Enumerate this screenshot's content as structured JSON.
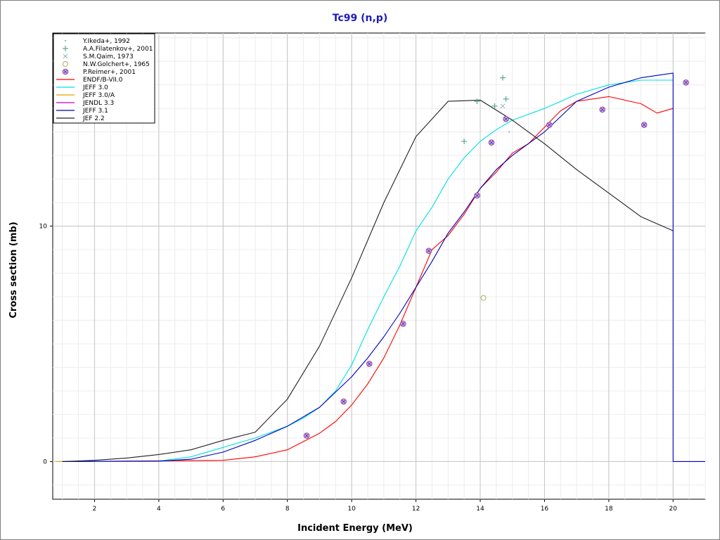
{
  "chart_data": {
    "type": "line",
    "title": "Tc99 (n,p)",
    "xlabel": "Incident Energy (MeV)",
    "ylabel": "Cross section (mb)",
    "xlim": [
      0.7,
      21
    ],
    "ylim": [
      -1.6,
      18.2
    ],
    "x_ticks": [
      2,
      4,
      6,
      8,
      10,
      12,
      14,
      16,
      18,
      20
    ],
    "y_ticks": [
      0,
      10
    ],
    "grid": true,
    "legend_position": "top-left",
    "series": [
      {
        "name": "Y.Ikeda+, 1992",
        "kind": "scatter",
        "marker": "dot",
        "color": "#6aa6a6",
        "points": [
          [
            14.9,
            14.0
          ]
        ]
      },
      {
        "name": "A.A.Filatenkov+, 2001",
        "kind": "scatter",
        "marker": "plus",
        "color": "#5aa88a",
        "points": [
          [
            13.5,
            13.6
          ],
          [
            13.9,
            15.3
          ],
          [
            14.45,
            15.1
          ],
          [
            14.7,
            16.3
          ],
          [
            14.8,
            15.4
          ]
        ]
      },
      {
        "name": "S.M.Qaim, 1973",
        "kind": "scatter",
        "marker": "cross",
        "color": "#8ab0c0",
        "points": [
          [
            14.7,
            15.1
          ]
        ]
      },
      {
        "name": "N.W.Golchert+, 1965",
        "kind": "scatter",
        "marker": "circle",
        "color": "#b0b060",
        "points": [
          [
            14.1,
            6.95
          ]
        ]
      },
      {
        "name": "P.Reimer+, 2001",
        "kind": "scatter",
        "marker": "circle-x",
        "color": "#a040a0",
        "points": [
          [
            8.6,
            1.1
          ],
          [
            9.75,
            2.55
          ],
          [
            10.55,
            4.15
          ],
          [
            11.6,
            5.85
          ],
          [
            12.4,
            8.95
          ],
          [
            13.9,
            11.3
          ],
          [
            14.35,
            13.55
          ],
          [
            14.8,
            14.55
          ],
          [
            16.15,
            14.3
          ],
          [
            17.8,
            14.95
          ],
          [
            19.1,
            14.3
          ],
          [
            20.4,
            16.1
          ]
        ]
      },
      {
        "name": "ENDF/B-VII.0",
        "kind": "line",
        "color": "#ff0000",
        "points": [
          [
            1,
            0
          ],
          [
            6,
            0.05
          ],
          [
            7,
            0.2
          ],
          [
            8,
            0.5
          ],
          [
            9,
            1.2
          ],
          [
            9.5,
            1.7
          ],
          [
            10,
            2.4
          ],
          [
            10.5,
            3.3
          ],
          [
            11,
            4.4
          ],
          [
            11.5,
            5.8
          ],
          [
            12,
            7.4
          ],
          [
            12.5,
            9.0
          ],
          [
            13,
            9.6
          ],
          [
            13.5,
            10.5
          ],
          [
            14,
            11.6
          ],
          [
            14.5,
            12.3
          ],
          [
            15,
            13.1
          ],
          [
            15.5,
            13.5
          ],
          [
            16,
            14.2
          ],
          [
            16.5,
            14.9
          ],
          [
            17,
            15.3
          ],
          [
            18,
            15.5
          ],
          [
            19,
            15.2
          ],
          [
            19.5,
            14.8
          ],
          [
            20,
            15.0
          ]
        ]
      },
      {
        "name": "JEFF 3.0",
        "kind": "line",
        "color": "#00e0e0",
        "points": [
          [
            1,
            0
          ],
          [
            4,
            0.02
          ],
          [
            5,
            0.2
          ],
          [
            6,
            0.6
          ],
          [
            7,
            1.0
          ],
          [
            8,
            1.5
          ],
          [
            8.5,
            1.85
          ],
          [
            9,
            2.3
          ],
          [
            9.5,
            3.0
          ],
          [
            10,
            4.1
          ],
          [
            10.5,
            5.6
          ],
          [
            11,
            7.0
          ],
          [
            11.5,
            8.3
          ],
          [
            12,
            9.8
          ],
          [
            12.5,
            10.8
          ],
          [
            13,
            12.0
          ],
          [
            13.5,
            12.9
          ],
          [
            14,
            13.6
          ],
          [
            14.5,
            14.1
          ],
          [
            15,
            14.5
          ],
          [
            16,
            15.0
          ],
          [
            17,
            15.6
          ],
          [
            18,
            16.0
          ],
          [
            19,
            16.2
          ],
          [
            20,
            16.2
          ]
        ]
      },
      {
        "name": "JEFF 3.0/A",
        "kind": "line",
        "color": "#e0a000",
        "points": [
          [
            0.8,
            0
          ],
          [
            1.0,
            0
          ]
        ]
      },
      {
        "name": "JENDL 3.3",
        "kind": "line",
        "color": "#c000c0",
        "points": []
      },
      {
        "name": "JEFF 3.1",
        "kind": "line",
        "color": "#0000c0",
        "points": [
          [
            1,
            0
          ],
          [
            4,
            0.02
          ],
          [
            5,
            0.1
          ],
          [
            6,
            0.4
          ],
          [
            7,
            0.9
          ],
          [
            8,
            1.5
          ],
          [
            9,
            2.3
          ],
          [
            10,
            3.6
          ],
          [
            10.5,
            4.4
          ],
          [
            11,
            5.3
          ],
          [
            11.5,
            6.3
          ],
          [
            12,
            7.4
          ],
          [
            12.5,
            8.5
          ],
          [
            13,
            9.7
          ],
          [
            13.5,
            10.6
          ],
          [
            14,
            11.6
          ],
          [
            14.5,
            12.4
          ],
          [
            15,
            13.0
          ],
          [
            16,
            14.0
          ],
          [
            17,
            15.3
          ],
          [
            18,
            15.9
          ],
          [
            19,
            16.3
          ],
          [
            20,
            16.5
          ],
          [
            20.0,
            0
          ],
          [
            21,
            0
          ]
        ]
      },
      {
        "name": "JEF 2.2",
        "kind": "line",
        "color": "#202020",
        "points": [
          [
            1,
            0
          ],
          [
            2,
            0.05
          ],
          [
            3,
            0.15
          ],
          [
            4,
            0.3
          ],
          [
            5,
            0.5
          ],
          [
            6,
            0.9
          ],
          [
            7,
            1.25
          ],
          [
            8,
            2.65
          ],
          [
            9,
            4.9
          ],
          [
            10,
            7.8
          ],
          [
            11,
            11.0
          ],
          [
            12,
            13.8
          ],
          [
            13,
            15.3
          ],
          [
            14,
            15.35
          ],
          [
            15,
            14.5
          ],
          [
            16,
            13.5
          ],
          [
            17,
            12.4
          ],
          [
            18,
            11.4
          ],
          [
            19,
            10.4
          ],
          [
            20,
            9.8
          ]
        ]
      }
    ]
  }
}
